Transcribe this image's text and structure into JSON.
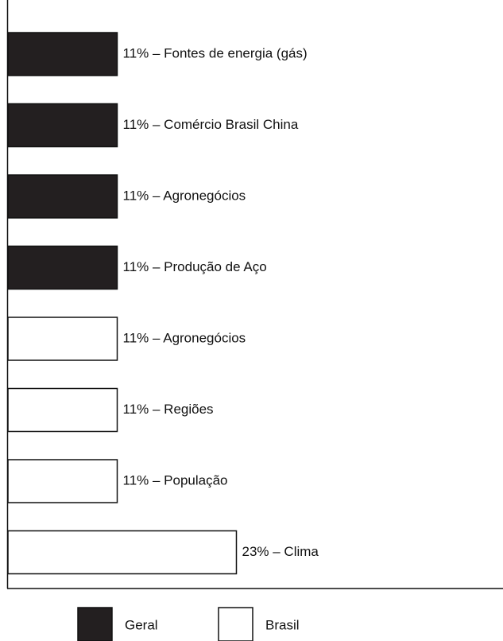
{
  "chart_data": {
    "type": "bar",
    "orientation": "horizontal",
    "categories": [
      "11% – Fontes de energia (gás)",
      "11% – Comércio Brasil China",
      "11% – Agronegócios",
      "11% – Produção de Aço",
      "11% – Agronegócios",
      "11% – Regiões",
      "11% – População",
      "23% – Clima"
    ],
    "series": [
      {
        "name": "Geral",
        "color": "#231f20",
        "values": [
          11,
          11,
          11,
          11,
          null,
          null,
          null,
          null
        ]
      },
      {
        "name": "Brasil",
        "color": "#ffffff",
        "values": [
          null,
          null,
          null,
          null,
          11,
          11,
          11,
          23
        ]
      }
    ]
  }
}
